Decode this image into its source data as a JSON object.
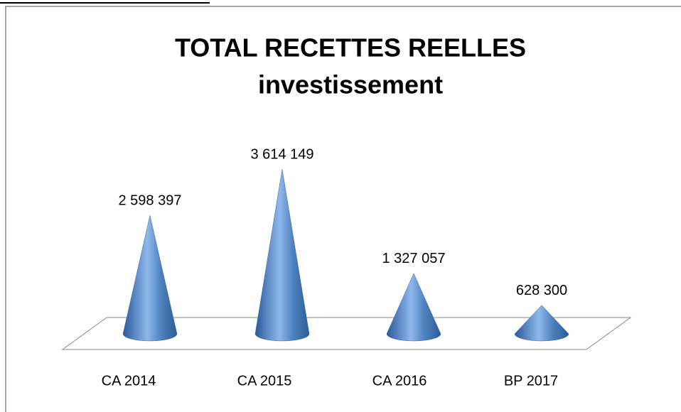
{
  "chart_data": {
    "type": "cone",
    "title": [
      "TOTAL RECETTES REELLES",
      "investissement"
    ],
    "categories": [
      "CA 2014",
      "CA 2015",
      "CA 2016",
      "BP 2017"
    ],
    "values": [
      2598397,
      3614149,
      1327057,
      628300
    ],
    "value_labels": [
      "2 598 397",
      "3 614 149",
      "1 327 057",
      "628 300"
    ],
    "color": "#4f81bd"
  }
}
